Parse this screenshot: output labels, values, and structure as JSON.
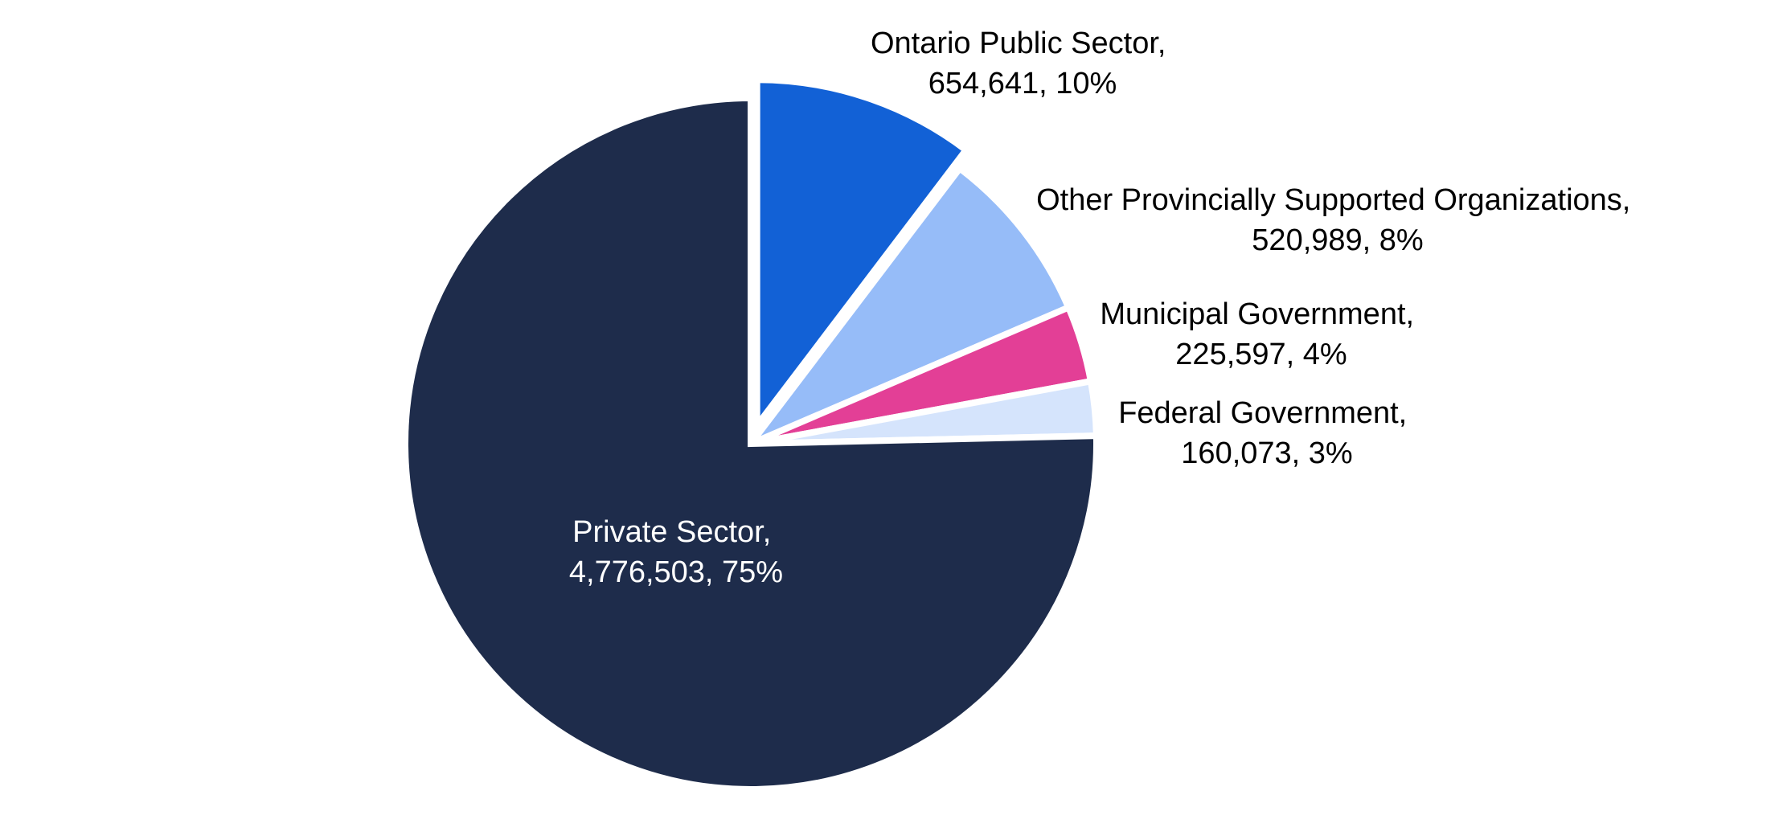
{
  "chart_data": {
    "type": "pie",
    "title": "",
    "start": "12 o'clock",
    "direction": "clockwise",
    "legend": "none",
    "slices": [
      {
        "category": "Ontario Public Sector",
        "value": 654641,
        "percent": 10,
        "value_label": "654,641",
        "percent_label": "10%",
        "color": "#1261D6",
        "exploded": true,
        "label_line1": "Ontario Public Sector,",
        "label_line2": "654,641, 10%",
        "label_position": "outside"
      },
      {
        "category": "Other Provincially Supported Organizations",
        "value": 520989,
        "percent": 8,
        "value_label": "520,989",
        "percent_label": "8%",
        "color": "#96BCF8",
        "exploded": false,
        "label_line1": "Other Provincially Supported Organizations,",
        "label_line2": "520,989, 8%",
        "label_position": "outside"
      },
      {
        "category": "Municipal Government",
        "value": 225597,
        "percent": 4,
        "value_label": "225,597",
        "percent_label": "4%",
        "color": "#E33F96",
        "exploded": false,
        "label_line1": "Municipal Government,",
        "label_line2": "225,597, 4%",
        "label_position": "outside"
      },
      {
        "category": "Federal Government",
        "value": 160073,
        "percent": 3,
        "value_label": "160,073",
        "percent_label": "3%",
        "color": "#D5E4FC",
        "exploded": false,
        "label_line1": "Federal Government,",
        "label_line2": "160,073, 3%",
        "label_position": "outside"
      },
      {
        "category": "Private Sector",
        "value": 4776503,
        "percent": 75,
        "value_label": "4,776,503",
        "percent_label": "75%",
        "color": "#1E2C4B",
        "exploded": false,
        "label_line1": "Private Sector,",
        "label_line2": "4,776,503, 75%",
        "label_position": "inside"
      }
    ]
  }
}
